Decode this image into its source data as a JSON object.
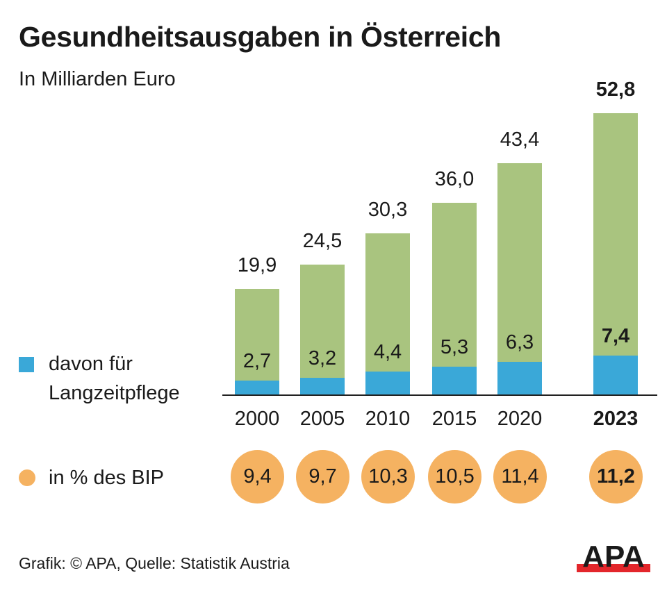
{
  "chart_data": {
    "type": "bar",
    "title": "Gesundheitsausgaben in Österreich",
    "subtitle": "In Milliarden Euro",
    "categories": [
      "2000",
      "2005",
      "2010",
      "2015",
      "2020",
      "2023"
    ],
    "highlight_category": "2023",
    "series": [
      {
        "name": "Gesundheitsausgaben",
        "values": [
          19.9,
          24.5,
          30.3,
          36.0,
          43.4,
          52.8
        ],
        "labels": [
          "19,9",
          "24,5",
          "30,3",
          "36,0",
          "43,4",
          "52,8"
        ],
        "color": "#a9c47f"
      },
      {
        "name": "davon für Langzeitpflege",
        "values": [
          2.7,
          3.2,
          4.4,
          5.3,
          6.3,
          7.4
        ],
        "labels": [
          "2,7",
          "3,2",
          "4,4",
          "5,3",
          "6,3",
          "7,4"
        ],
        "color": "#3aa8d8"
      }
    ],
    "bip_share": {
      "name": "in % des BIP",
      "values": [
        9.4,
        9.7,
        10.3,
        10.5,
        11.4,
        11.2
      ],
      "labels": [
        "9,4",
        "9,7",
        "10,3",
        "10,5",
        "11,4",
        "11,2"
      ],
      "color": "#f5b261"
    },
    "ylim": [
      0,
      55
    ],
    "grid": false
  },
  "legend": {
    "longterm_line1": "davon für",
    "longterm_line2": "Langzeitpflege",
    "bip": "in % des BIP"
  },
  "footer": {
    "source": "Grafik: © APA, Quelle: Statistik Austria",
    "logo": "APA"
  }
}
